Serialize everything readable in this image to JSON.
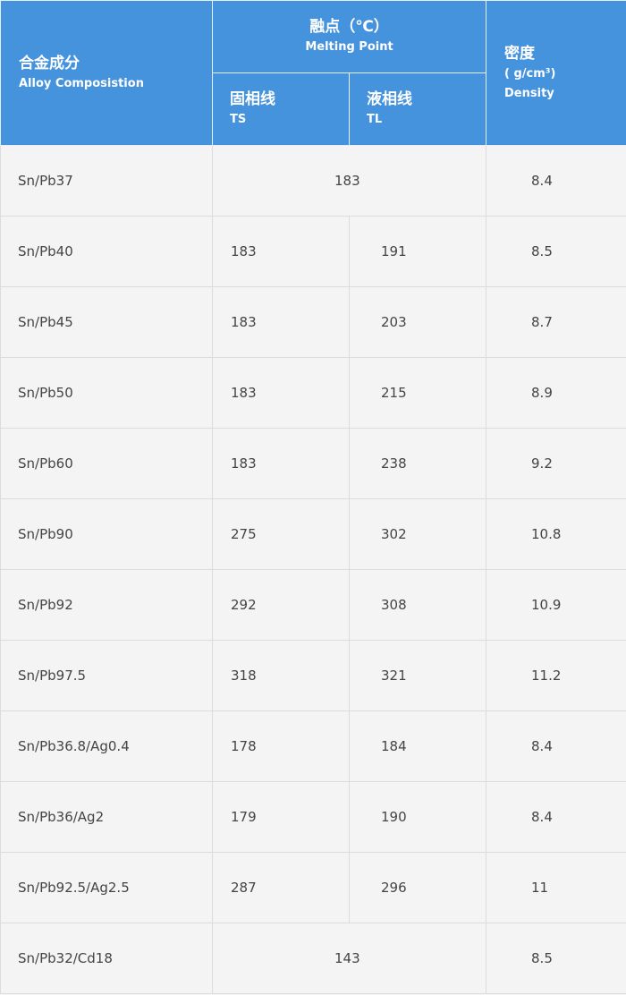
{
  "header": {
    "composition_cn": "合金成分",
    "composition_en": "Alloy Composistion",
    "melting_cn": "融点（℃）",
    "melting_en": "Melting Point",
    "ts_cn": "固相线",
    "ts_en": "TS",
    "tl_cn": "液相线",
    "tl_en": "TL",
    "density_cn": "密度",
    "density_unit": "( g/cm³)",
    "density_en": "Density"
  },
  "colors": {
    "header_bg": "#4592dd",
    "body_bg": "#f4f4f4",
    "text": "#444444"
  },
  "rows": [
    {
      "alloy": "Sn/Pb37",
      "ts": "183",
      "tl": "",
      "merged": "183",
      "density": "8.4"
    },
    {
      "alloy": "Sn/Pb40",
      "ts": "183",
      "tl": "191",
      "density": "8.5"
    },
    {
      "alloy": "Sn/Pb45",
      "ts": "183",
      "tl": "203",
      "density": "8.7"
    },
    {
      "alloy": "Sn/Pb50",
      "ts": "183",
      "tl": "215",
      "density": "8.9"
    },
    {
      "alloy": "Sn/Pb60",
      "ts": "183",
      "tl": "238",
      "density": "9.2"
    },
    {
      "alloy": "Sn/Pb90",
      "ts": "275",
      "tl": "302",
      "density": "10.8"
    },
    {
      "alloy": "Sn/Pb92",
      "ts": "292",
      "tl": "308",
      "density": "10.9"
    },
    {
      "alloy": "Sn/Pb97.5",
      "ts": "318",
      "tl": "321",
      "density": "11.2"
    },
    {
      "alloy": "Sn/Pb36.8/Ag0.4",
      "ts": "178",
      "tl": "184",
      "density": "8.4"
    },
    {
      "alloy": "Sn/Pb36/Ag2",
      "ts": "179",
      "tl": "190",
      "density": "8.4"
    },
    {
      "alloy": "Sn/Pb92.5/Ag2.5",
      "ts": "287",
      "tl": "296",
      "density": "11"
    },
    {
      "alloy": "Sn/Pb32/Cd18",
      "merged": "143",
      "density": "8.5"
    }
  ]
}
